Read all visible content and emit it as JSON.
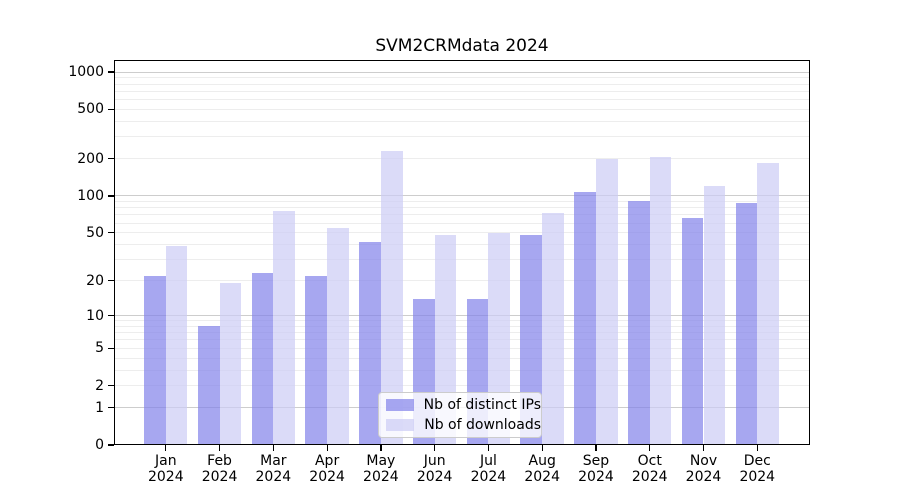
{
  "chart_data": {
    "type": "bar",
    "title": "SVM2CRMdata 2024",
    "months": [
      "Jan",
      "Feb",
      "Mar",
      "Apr",
      "May",
      "Jun",
      "Jul",
      "Aug",
      "Sep",
      "Oct",
      "Nov",
      "Dec"
    ],
    "year_label": "2024",
    "series": [
      {
        "name": "Nb of distinct IPs",
        "color": "rgba(129,129,234,0.7)",
        "values": [
          22,
          8,
          23,
          22,
          42,
          14,
          14,
          48,
          107,
          90,
          66,
          88
        ]
      },
      {
        "name": "Nb of downloads",
        "color": "rgba(204,204,245,0.7)",
        "values": [
          39,
          19,
          75,
          55,
          230,
          48,
          50,
          73,
          200,
          205,
          120,
          185
        ]
      }
    ],
    "y_scale": "log1p",
    "y_ticks": [
      0,
      1,
      2,
      5,
      10,
      20,
      50,
      100,
      200,
      500,
      1000
    ],
    "ylim": [
      0,
      1240
    ],
    "grid": "on",
    "legend_position": "inside-bottom-center"
  },
  "colors": {
    "major_grid": "#cdcdcd",
    "minor_grid": "#ededed",
    "spine": "#000000",
    "background": "#ffffff"
  }
}
